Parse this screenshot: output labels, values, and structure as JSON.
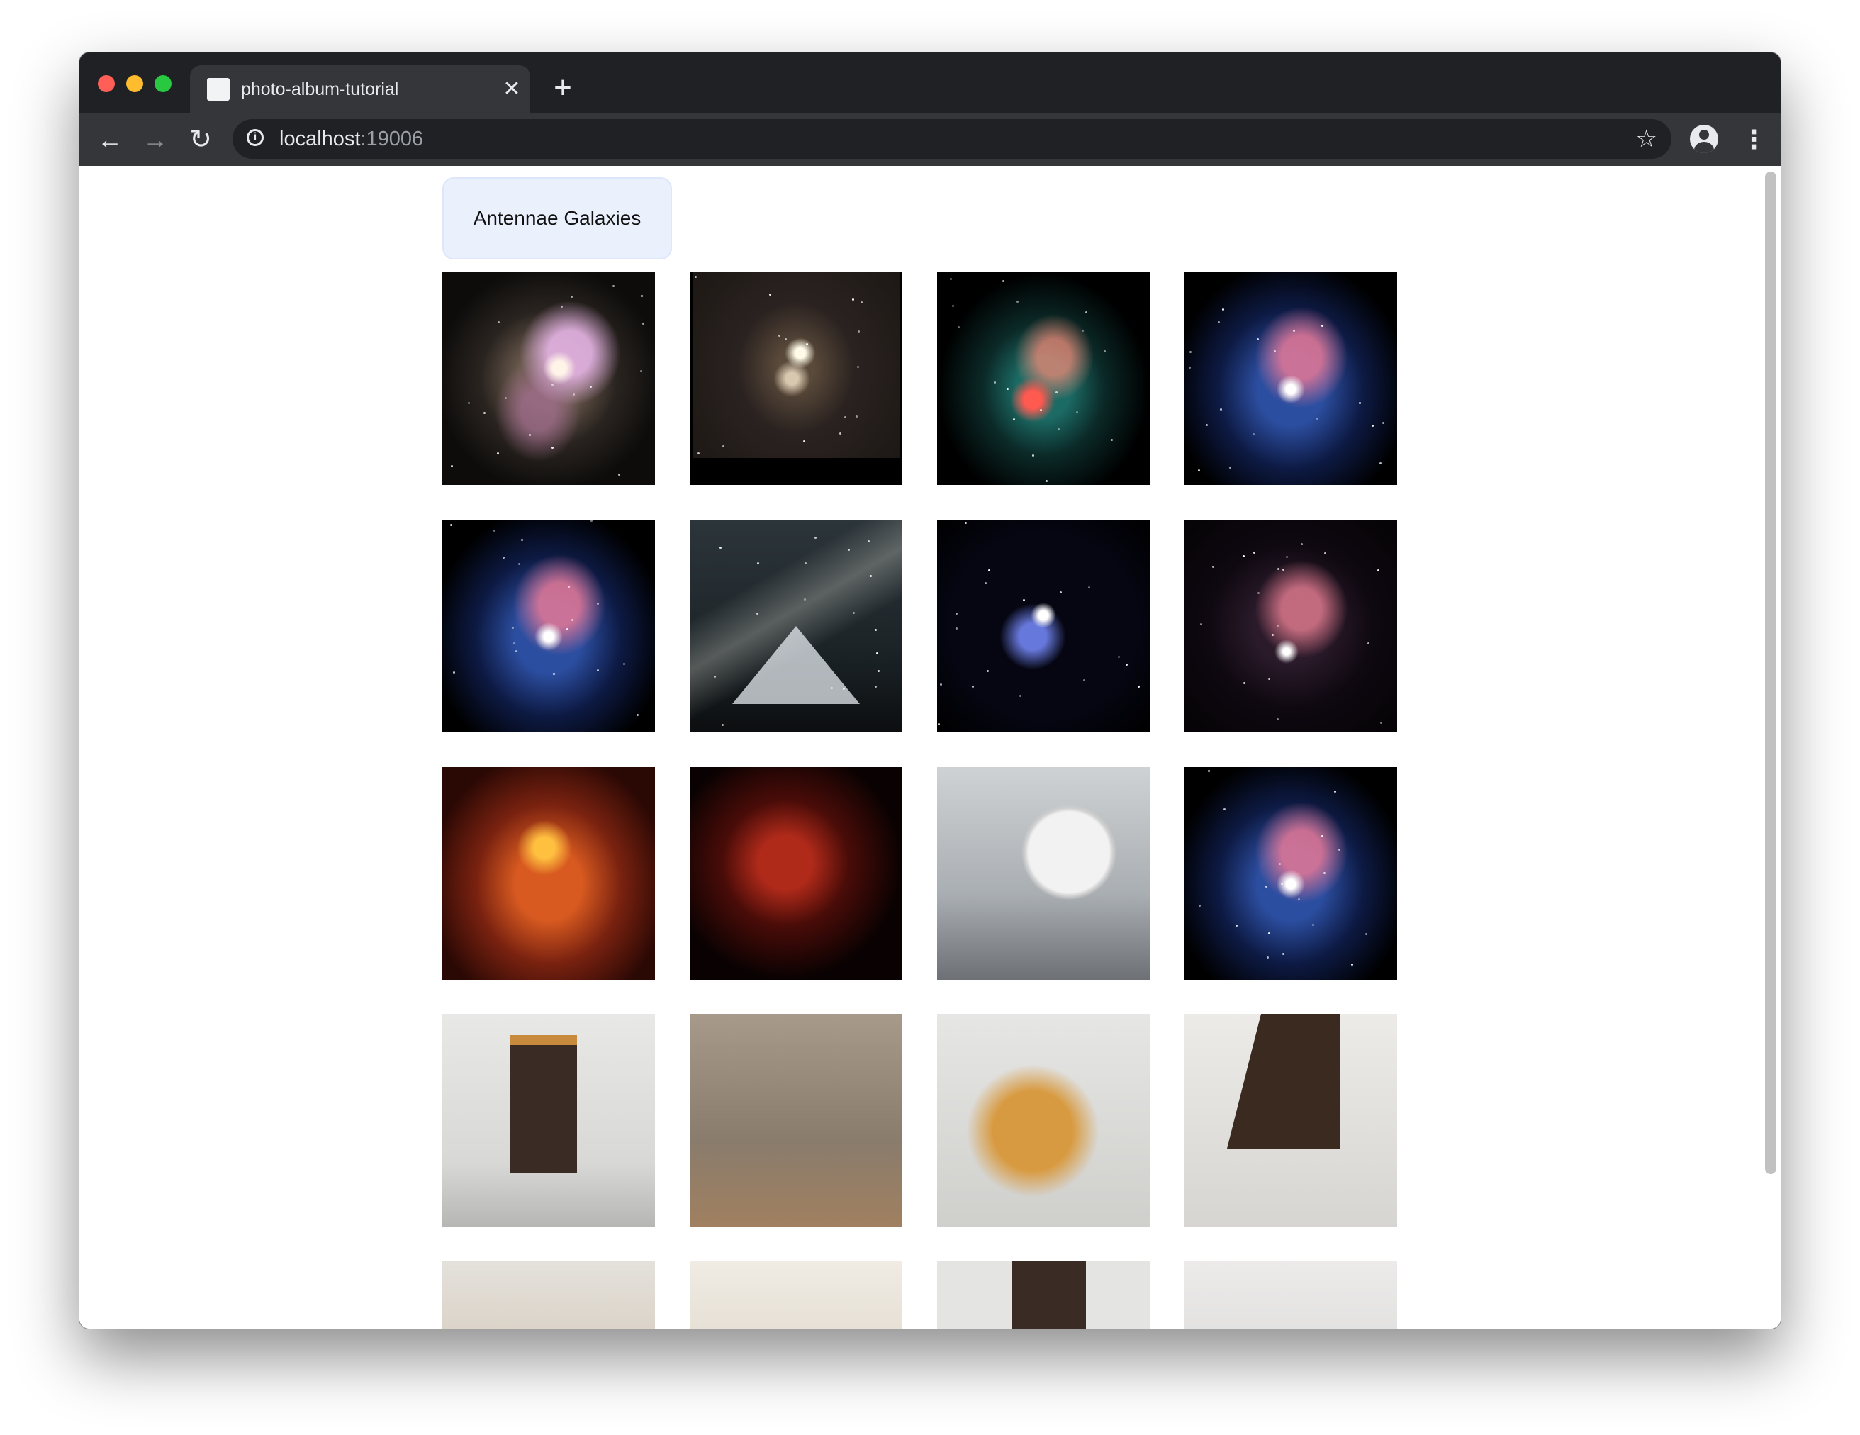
{
  "browser": {
    "tab_title": "photo-album-tutorial",
    "tab_close_glyph": "✕",
    "new_tab_glyph": "+",
    "url_host": "localhost",
    "url_port": ":19006",
    "icons": {
      "back": "arrow-left-icon",
      "forward": "arrow-right-icon",
      "reload": "reload-icon",
      "info": "info-icon",
      "bookmark": "star-icon",
      "profile": "account-icon",
      "menu": "kebab-menu-icon"
    }
  },
  "app": {
    "album_title": "Antennae Galaxies",
    "photos": [
      {
        "kind": "galaxy"
      },
      {
        "kind": "galaxy"
      },
      {
        "kind": "galaxy"
      },
      {
        "kind": "galaxy"
      },
      {
        "kind": "galaxy"
      },
      {
        "kind": "landscape"
      },
      {
        "kind": "galaxy"
      },
      {
        "kind": "galaxy"
      },
      {
        "kind": "galaxy"
      },
      {
        "kind": "galaxy"
      },
      {
        "kind": "spacecraft"
      },
      {
        "kind": "galaxy"
      },
      {
        "kind": "spacecraft"
      },
      {
        "kind": "spacecraft"
      },
      {
        "kind": "spacecraft"
      },
      {
        "kind": "spacecraft"
      },
      {
        "kind": "spacecraft"
      },
      {
        "kind": "spacecraft"
      },
      {
        "kind": "spacecraft"
      },
      {
        "kind": "spacecraft"
      }
    ]
  },
  "colors": {
    "chrome_dark": "#202124",
    "chrome_tab": "#35363a",
    "album_tab_bg": "#eaf0fc",
    "scroll_thumb": "#c1c1c1"
  }
}
